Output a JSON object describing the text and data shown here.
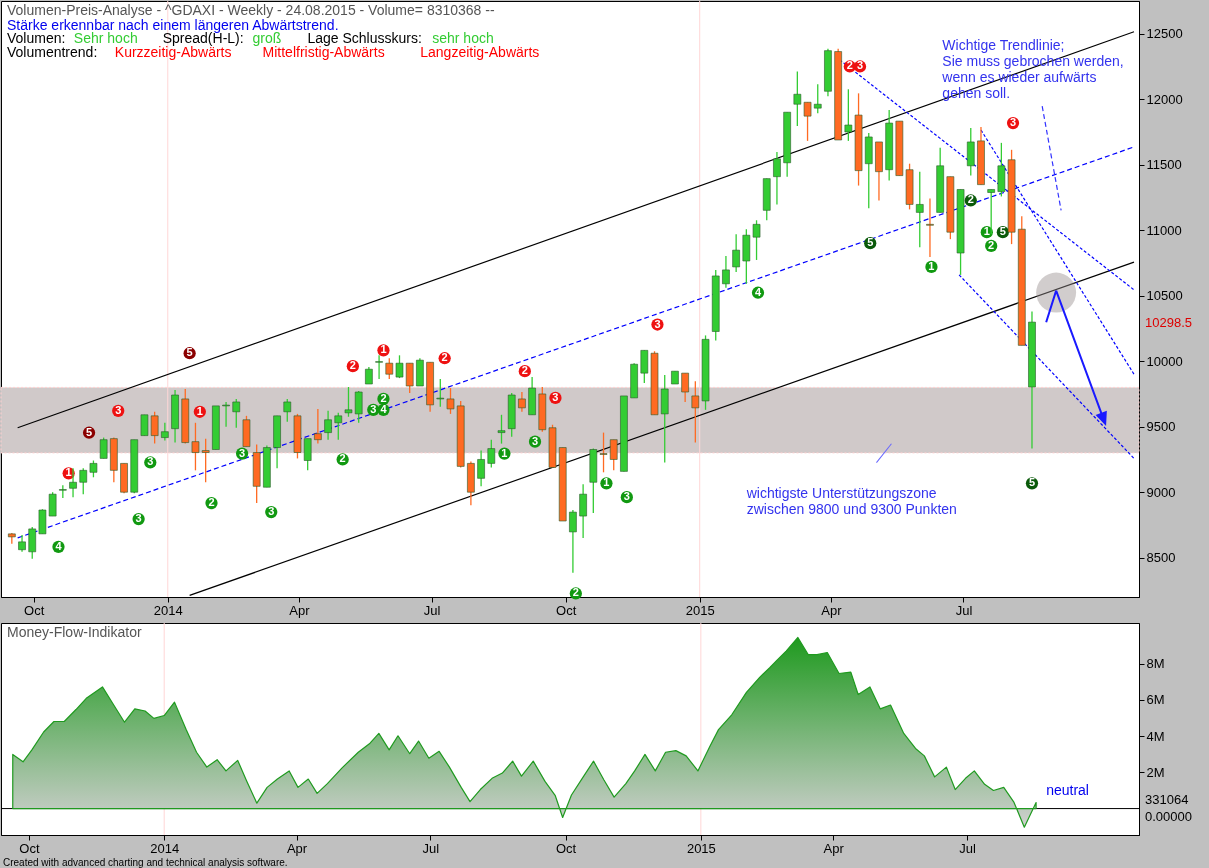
{
  "chart_data": [
    {
      "type": "candlestick",
      "title": "Volumen-Preis-Analyse - ^GDAXI - Weekly  - 24.08.2015 - Volume= 8310368 --",
      "subtitle": "Stärke erkennbar nach einem längeren Abwärtstrend.",
      "x": [
        "2013-09-16",
        "2013-09-23",
        "2013-09-30",
        "2013-10-07",
        "2013-10-14",
        "2013-10-21",
        "2013-10-28",
        "2013-11-04",
        "2013-11-11",
        "2013-11-18",
        "2013-11-25",
        "2013-12-02",
        "2013-12-09",
        "2013-12-16",
        "2013-12-23",
        "2013-12-30",
        "2014-01-06",
        "2014-01-13",
        "2014-01-20",
        "2014-01-27",
        "2014-02-03",
        "2014-02-10",
        "2014-02-17",
        "2014-02-24",
        "2014-03-03",
        "2014-03-10",
        "2014-03-17",
        "2014-03-24",
        "2014-03-31",
        "2014-04-07",
        "2014-04-14",
        "2014-04-21",
        "2014-04-28",
        "2014-05-05",
        "2014-05-12",
        "2014-05-19",
        "2014-05-26",
        "2014-06-02",
        "2014-06-09",
        "2014-06-16",
        "2014-06-23",
        "2014-06-30",
        "2014-07-07",
        "2014-07-14",
        "2014-07-21",
        "2014-07-28",
        "2014-08-04",
        "2014-08-11",
        "2014-08-18",
        "2014-08-25",
        "2014-09-01",
        "2014-09-08",
        "2014-09-15",
        "2014-09-22",
        "2014-09-29",
        "2014-10-06",
        "2014-10-13",
        "2014-10-20",
        "2014-10-27",
        "2014-11-03",
        "2014-11-10",
        "2014-11-17",
        "2014-11-24",
        "2014-12-01",
        "2014-12-08",
        "2014-12-15",
        "2014-12-22",
        "2014-12-29",
        "2015-01-05",
        "2015-01-12",
        "2015-01-19",
        "2015-01-26",
        "2015-02-02",
        "2015-02-09",
        "2015-02-16",
        "2015-02-23",
        "2015-03-02",
        "2015-03-09",
        "2015-03-16",
        "2015-03-23",
        "2015-03-30",
        "2015-04-06",
        "2015-04-13",
        "2015-04-20",
        "2015-04-27",
        "2015-05-04",
        "2015-05-11",
        "2015-05-18",
        "2015-05-25",
        "2015-06-01",
        "2015-06-08",
        "2015-06-15",
        "2015-06-22",
        "2015-06-29",
        "2015-07-06",
        "2015-07-13",
        "2015-07-20",
        "2015-07-27",
        "2015-08-03",
        "2015-08-10",
        "2015-08-17"
      ],
      "ohlc": [
        [
          8682,
          8689,
          8606,
          8659
        ],
        [
          8561,
          8674,
          8545,
          8621
        ],
        [
          8545,
          8735,
          8492,
          8720
        ],
        [
          8682,
          8870,
          8682,
          8864
        ],
        [
          8818,
          9000,
          8818,
          8985
        ],
        [
          9015,
          9053,
          8955,
          9020
        ],
        [
          9030,
          9182,
          8962,
          9076
        ],
        [
          9076,
          9182,
          8985,
          9167
        ],
        [
          9152,
          9242,
          9114,
          9220
        ],
        [
          9258,
          9417,
          9258,
          9401
        ],
        [
          9409,
          9417,
          9076,
          9167
        ],
        [
          9220,
          9220,
          8992,
          9000
        ],
        [
          9000,
          9401,
          8992,
          9401
        ],
        [
          9432,
          9591,
          9432,
          9591
        ],
        [
          9583,
          9614,
          9371,
          9432
        ],
        [
          9417,
          9530,
          9394,
          9462
        ],
        [
          9485,
          9780,
          9379,
          9742
        ],
        [
          9712,
          9788,
          9371,
          9379
        ],
        [
          9386,
          9530,
          9167,
          9303
        ],
        [
          9318,
          9409,
          9076,
          9303
        ],
        [
          9326,
          9659,
          9326,
          9659
        ],
        [
          9659,
          9689,
          9500,
          9665
        ],
        [
          9614,
          9712,
          9492,
          9689
        ],
        [
          9553,
          9583,
          9348,
          9348
        ],
        [
          9303,
          9364,
          8917,
          9045
        ],
        [
          9038,
          9356,
          9038,
          9341
        ],
        [
          9341,
          9583,
          9182,
          9583
        ],
        [
          9614,
          9712,
          9538,
          9689
        ],
        [
          9583,
          9598,
          9258,
          9303
        ],
        [
          9242,
          9409,
          9167,
          9409
        ],
        [
          9447,
          9636,
          9371,
          9401
        ],
        [
          9455,
          9621,
          9401,
          9553
        ],
        [
          9530,
          9606,
          9401,
          9583
        ],
        [
          9606,
          9803,
          9576,
          9629
        ],
        [
          9598,
          9773,
          9530,
          9765
        ],
        [
          9826,
          9955,
          9826,
          9939
        ],
        [
          9992,
          10045,
          9864,
          9997
        ],
        [
          9985,
          10023,
          9864,
          9901
        ],
        [
          9879,
          10045,
          9871,
          9985
        ],
        [
          9985,
          9985,
          9758,
          9811
        ],
        [
          9811,
          10023,
          9811,
          10008
        ],
        [
          9992,
          9992,
          9614,
          9667
        ],
        [
          9712,
          9864,
          9652,
          9718
        ],
        [
          9712,
          9795,
          9598,
          9636
        ],
        [
          9659,
          9697,
          9189,
          9197
        ],
        [
          9220,
          9235,
          8901,
          9000
        ],
        [
          9106,
          9318,
          9045,
          9250
        ],
        [
          9220,
          9401,
          9189,
          9333
        ],
        [
          9455,
          9591,
          9371,
          9470
        ],
        [
          9485,
          9758,
          9424,
          9742
        ],
        [
          9712,
          9765,
          9614,
          9644
        ],
        [
          9591,
          9879,
          9591,
          9795
        ],
        [
          9750,
          9803,
          9462,
          9477
        ],
        [
          9492,
          9515,
          9189,
          9189
        ],
        [
          9341,
          9341,
          8780,
          8780
        ],
        [
          8697,
          8864,
          8386,
          8848
        ],
        [
          8818,
          9061,
          8651,
          8985
        ],
        [
          9076,
          9333,
          8841,
          9326
        ],
        [
          9295,
          9455,
          9152,
          9288
        ],
        [
          9401,
          9401,
          9167,
          9250
        ],
        [
          9159,
          9735,
          9159,
          9735
        ],
        [
          9720,
          9985,
          9720,
          9977
        ],
        [
          9909,
          10083,
          9833,
          10083
        ],
        [
          10061,
          10076,
          9591,
          9591
        ],
        [
          9598,
          9894,
          9227,
          9788
        ],
        [
          9826,
          9924,
          9826,
          9924
        ],
        [
          9909,
          9909,
          9689,
          9765
        ],
        [
          9735,
          9848,
          9379,
          9644
        ],
        [
          9697,
          10197,
          9629,
          10167
        ],
        [
          10227,
          10697,
          10159,
          10651
        ],
        [
          10591,
          10803,
          10561,
          10697
        ],
        [
          10720,
          10970,
          10682,
          10848
        ],
        [
          10765,
          11008,
          10591,
          10962
        ],
        [
          10947,
          11076,
          10773,
          11045
        ],
        [
          11152,
          11394,
          11076,
          11394
        ],
        [
          11409,
          11598,
          11197,
          11545
        ],
        [
          11515,
          11901,
          11409,
          11901
        ],
        [
          11962,
          12212,
          11795,
          12038
        ],
        [
          11977,
          11977,
          11682,
          11871
        ],
        [
          11932,
          12114,
          11894,
          11962
        ],
        [
          12061,
          12386,
          12023,
          12371
        ],
        [
          12364,
          12386,
          11689,
          11689
        ],
        [
          11750,
          12076,
          11682,
          11803
        ],
        [
          11879,
          12045,
          11341,
          11455
        ],
        [
          11508,
          11742,
          11167,
          11712
        ],
        [
          11674,
          11674,
          11227,
          11447
        ],
        [
          11462,
          11917,
          11379,
          11818
        ],
        [
          11833,
          11833,
          11417,
          11417
        ],
        [
          11462,
          11508,
          11159,
          11197
        ],
        [
          11136,
          11447,
          10871,
          11197
        ],
        [
          11045,
          11242,
          10795,
          11038
        ],
        [
          11136,
          11629,
          11136,
          11492
        ],
        [
          11409,
          11409,
          10932,
          10985
        ],
        [
          10826,
          11311,
          10659,
          11311
        ],
        [
          11492,
          11780,
          11417,
          11674
        ],
        [
          11682,
          11788,
          11348,
          11348
        ],
        [
          11288,
          11311,
          10970,
          11311
        ],
        [
          11295,
          11667,
          11258,
          11492
        ],
        [
          11538,
          11614,
          10894,
          10985
        ],
        [
          11008,
          11106,
          10121,
          10121
        ],
        [
          9803,
          10379,
          9333,
          10298.5
        ]
      ],
      "colors": [
        "#ff6a22",
        "#33cc33",
        "#33cc33",
        "#33cc33",
        "#33cc33",
        "#33cc33",
        "#33cc33",
        "#33cc33",
        "#33cc33",
        "#33cc33",
        "#ff6a22",
        "#ff6a22",
        "#33cc33",
        "#33cc33",
        "#ff6a22",
        "#33cc33",
        "#33cc33",
        "#ff6a22",
        "#ff6a22",
        "#ff6a22",
        "#33cc33",
        "#33cc33",
        "#33cc33",
        "#ff6a22",
        "#ff6a22",
        "#33cc33",
        "#33cc33",
        "#33cc33",
        "#ff6a22",
        "#33cc33",
        "#ff6a22",
        "#33cc33",
        "#33cc33",
        "#33cc33",
        "#33cc33",
        "#33cc33",
        "#33cc33",
        "#ff6a22",
        "#33cc33",
        "#ff6a22",
        "#33cc33",
        "#ff6a22",
        "#33cc33",
        "#ff6a22",
        "#ff6a22",
        "#ff6a22",
        "#33cc33",
        "#33cc33",
        "#33cc33",
        "#33cc33",
        "#ff6a22",
        "#33cc33",
        "#ff6a22",
        "#ff6a22",
        "#ff6a22",
        "#33cc33",
        "#33cc33",
        "#33cc33",
        "#ff6a22",
        "#ff6a22",
        "#33cc33",
        "#33cc33",
        "#33cc33",
        "#ff6a22",
        "#33cc33",
        "#33cc33",
        "#ff6a22",
        "#ff6a22",
        "#33cc33",
        "#33cc33",
        "#33cc33",
        "#33cc33",
        "#33cc33",
        "#33cc33",
        "#33cc33",
        "#33cc33",
        "#33cc33",
        "#33cc33",
        "#ff6a22",
        "#33cc33",
        "#33cc33",
        "#ff6a22",
        "#33cc33",
        "#ff6a22",
        "#33cc33",
        "#ff6a22",
        "#33cc33",
        "#ff6a22",
        "#ff6a22",
        "#33cc33",
        "#ff6a22",
        "#33cc33",
        "#ff6a22",
        "#33cc33",
        "#33cc33",
        "#ff6a22",
        "#33cc33",
        "#33cc33",
        "#ff6a22",
        "#ff6a22",
        "#33cc33"
      ],
      "series": [
        {
          "type": "line",
          "color": "#000000",
          "line_style": "solid",
          "x": [
            "2013-09-20",
            "2015-10-26"
          ],
          "values": [
            9492,
            12515
          ]
        },
        {
          "type": "line",
          "color": "#000000",
          "line_style": "solid",
          "x": [
            "2014-01-16",
            "2015-10-26"
          ],
          "values": [
            8212,
            10757
          ]
        },
        {
          "type": "line",
          "color": "#0000ff",
          "line_style": "dashed",
          "x": [
            "2013-09-20",
            "2015-10-26"
          ],
          "values": [
            8651,
            11636
          ]
        },
        {
          "type": "line",
          "color": "#0000ff",
          "line_style": "dotted",
          "x": [
            "2015-04-07",
            "2015-10-26"
          ],
          "values": [
            12301,
            10545
          ]
        },
        {
          "type": "line",
          "color": "#0000ff",
          "line_style": "dotted",
          "x": [
            "2015-07-13",
            "2015-10-26"
          ],
          "values": [
            11765,
            9901
          ]
        },
        {
          "type": "line",
          "color": "#0000ff",
          "line_style": "dotted",
          "x": [
            "2015-06-28",
            "2015-10-26"
          ],
          "values": [
            10659,
            9258
          ]
        },
        {
          "type": "line",
          "color": "#3333ff",
          "line_style": "dashed",
          "x": [
            "2015-08-24",
            "2015-09-06"
          ],
          "values": [
            11947,
            11151
          ]
        },
        {
          "type": "scatter",
          "color": "#ee1111",
          "marker": "circle",
          "x": [
            "2013-10-25",
            "2013-11-28",
            "2014-01-23",
            "2014-05-08",
            "2014-05-29",
            "2014-07-10",
            "2014-09-03",
            "2014-09-24",
            "2014-12-03",
            "2015-04-14",
            "2015-04-21",
            "2015-08-04"
          ],
          "values": [
            9144,
            9621,
            9614,
            9962,
            10083,
            10023,
            9924,
            9720,
            10280,
            12250,
            12250,
            11818
          ]
        },
        {
          "type": "scatter",
          "color": "#8b0000",
          "marker": "circle",
          "x": [
            "2013-11-08",
            "2014-01-16"
          ],
          "values": [
            9454,
            10061
          ]
        },
        {
          "type": "scatter",
          "color": "#119911",
          "marker": "circle",
          "x": [
            "2013-10-18",
            "2013-12-12",
            "2013-12-20",
            "2014-01-31",
            "2014-02-21",
            "2014-03-13",
            "2014-05-01",
            "2014-05-22",
            "2014-05-29",
            "2014-05-29",
            "2014-08-20",
            "2014-09-10",
            "2014-10-08",
            "2014-10-29",
            "2014-11-12",
            "2015-02-10",
            "2015-06-09",
            "2015-07-17",
            "2015-07-20"
          ],
          "values": [
            8583,
            8795,
            9227,
            8917,
            9295,
            8848,
            9250,
            9629,
            9629,
            9712,
            9295,
            9386,
            8227,
            9068,
            8962,
            10523,
            10720,
            10985,
            10880
          ]
        },
        {
          "type": "scatter",
          "color": "#0a5a0a",
          "marker": "circle",
          "x": [
            "2015-04-28",
            "2015-07-06",
            "2015-07-28",
            "2015-08-17"
          ],
          "values": [
            10901,
            11227,
            10985,
            9068
          ]
        }
      ],
      "bands": [
        {
          "axis": "y",
          "from": 9300,
          "to": 9800,
          "color": "#d0c9c9"
        }
      ],
      "ref_lines": [
        {
          "axis": "x",
          "value": "2014-01-01",
          "color": "#ffd6d6"
        },
        {
          "axis": "x",
          "value": "2015-01-01",
          "color": "#ffd6d6"
        }
      ],
      "annotations": [
        "Volumen:",
        "Sehr hoch",
        "Spread(H-L):",
        "groß",
        "Lage Schlusskurs:",
        "sehr hoch",
        "Volumentrend:",
        "Kurzzeitig-Abwärts",
        "Mittelfristig-Abwärts",
        "Langzeitig-Abwärts",
        "Wichtige Trendlinie;\nSie muss gebrochen werden,\nwenn es wieder aufwärts\ngehen soll.",
        "wichtigste Unterstützungszone\nzwischen 9800 und 9300 Punkten",
        "10298.5",
        "1",
        "3",
        "1",
        "2",
        "1",
        "2",
        "2",
        "3",
        "3",
        "2",
        "3",
        "3",
        "5",
        "5",
        "4",
        "3",
        "3",
        "2",
        "3",
        "3",
        "2",
        "3",
        "4",
        "2",
        "1",
        "3",
        "2",
        "1",
        "3",
        "4",
        "1",
        "1",
        "2",
        "5",
        "2",
        "5",
        "5"
      ],
      "xlim": [
        "2013-09-12",
        "2015-10-26"
      ],
      "xticks": [
        {
          "value": "2013-10-01",
          "label": "Oct"
        },
        {
          "value": "2014-01-01",
          "label": "2014"
        },
        {
          "value": "2014-04-01",
          "label": "Apr"
        },
        {
          "value": "2014-07-01",
          "label": "Jul"
        },
        {
          "value": "2014-10-01",
          "label": "Oct"
        },
        {
          "value": "2015-01-01",
          "label": "2015"
        },
        {
          "value": "2015-04-01",
          "label": "Apr"
        },
        {
          "value": "2015-07-01",
          "label": "Jul"
        }
      ],
      "ylim": [
        8200,
        12750
      ],
      "yticks": [
        8500,
        9000,
        9500,
        10000,
        10500,
        11000,
        11500,
        12000,
        12500
      ]
    },
    {
      "type": "area",
      "title": "Money-Flow-Indikator",
      "series": [
        {
          "type": "area",
          "color": "#1f9a1f",
          "x": [
            "2013-09-20",
            "2013-09-27",
            "2013-10-03",
            "2013-10-11",
            "2013-10-18",
            "2013-10-25",
            "2013-11-02",
            "2013-11-09",
            "2013-11-20",
            "2013-11-28",
            "2013-12-05",
            "2013-12-12",
            "2013-12-19",
            "2013-12-25",
            "2014-01-01",
            "2014-01-08",
            "2014-01-16",
            "2014-01-23",
            "2014-01-30",
            "2014-02-06",
            "2014-02-12",
            "2014-02-20",
            "2014-02-26",
            "2014-03-05",
            "2014-03-12",
            "2014-03-19",
            "2014-03-27",
            "2014-04-02",
            "2014-04-09",
            "2014-04-15",
            "2014-04-22",
            "2014-05-02",
            "2014-05-13",
            "2014-05-21",
            "2014-05-27",
            "2014-06-03",
            "2014-06-09",
            "2014-06-17",
            "2014-06-23",
            "2014-06-30",
            "2014-07-07",
            "2014-07-14",
            "2014-07-22",
            "2014-07-28",
            "2014-08-04",
            "2014-08-12",
            "2014-08-19",
            "2014-08-26",
            "2014-09-01",
            "2014-09-09",
            "2014-09-17",
            "2014-09-24",
            "2014-09-29",
            "2014-10-05",
            "2014-10-13",
            "2014-10-20",
            "2014-10-27",
            "2014-11-03",
            "2014-11-11",
            "2014-11-17",
            "2014-11-24",
            "2014-12-01",
            "2014-12-08",
            "2014-12-15",
            "2014-12-22",
            "2014-12-30",
            "2015-01-07",
            "2015-01-13",
            "2015-01-22",
            "2015-02-01",
            "2015-02-10",
            "2015-02-17",
            "2015-02-22",
            "2015-02-28",
            "2015-03-08",
            "2015-03-15",
            "2015-03-21",
            "2015-03-28",
            "2015-04-05",
            "2015-04-13",
            "2015-04-18",
            "2015-04-26",
            "2015-05-03",
            "2015-05-10",
            "2015-05-19",
            "2015-05-27",
            "2015-06-02",
            "2015-06-09",
            "2015-06-17",
            "2015-06-23",
            "2015-06-30",
            "2015-07-06",
            "2015-07-13",
            "2015-07-19",
            "2015-07-26",
            "2015-08-02",
            "2015-08-09",
            "2015-08-17"
          ],
          "values": [
            2990000,
            2580000,
            3240000,
            4230000,
            4810000,
            4810000,
            5470000,
            6090000,
            6720000,
            5680000,
            4770000,
            5510000,
            5390000,
            4980000,
            5140000,
            5880000,
            4350000,
            3110000,
            2290000,
            2700000,
            2080000,
            2660000,
            1540000,
            300000,
            1170000,
            1630000,
            2080000,
            1170000,
            1630000,
            840000,
            1380000,
            2250000,
            3110000,
            3610000,
            4150000,
            3240000,
            4020000,
            3030000,
            3730000,
            2780000,
            3160000,
            2290000,
            1170000,
            380000,
            1050000,
            1670000,
            1960000,
            2620000,
            1790000,
            2620000,
            1500000,
            710000,
            -490000,
            750000,
            1750000,
            2620000,
            1590000,
            630000,
            1380000,
            2080000,
            2990000,
            2080000,
            3110000,
            3200000,
            2910000,
            2080000,
            3410000,
            4360000,
            5180000,
            6420000,
            7250000,
            7790000,
            8210000,
            8700000,
            9450000,
            8500000,
            8500000,
            8620000,
            7460000,
            7540000,
            6300000,
            6720000,
            5510000,
            5720000,
            4150000,
            3320000,
            2910000,
            1750000,
            2290000,
            1050000,
            1670000,
            2080000,
            1340000,
            1000000,
            1170000,
            340000,
            -1030000,
            331064
          ]
        }
      ],
      "ref_lines": [
        {
          "axis": "x",
          "value": "2014-01-01",
          "color": "#ffd6d6"
        },
        {
          "axis": "x",
          "value": "2015-01-01",
          "color": "#ffd6d6"
        },
        {
          "axis": "y",
          "value": 0,
          "color": "#000000"
        }
      ],
      "annotations": [
        "Created with advanced charting and technical analysis software.",
        "neutral",
        "331064",
        "0.00000"
      ],
      "xlim": [
        "2013-09-12",
        "2015-10-26"
      ],
      "xticks": [
        {
          "value": "2013-10-01",
          "label": "Oct"
        },
        {
          "value": "2014-01-01",
          "label": "2014"
        },
        {
          "value": "2014-04-01",
          "label": "Apr"
        },
        {
          "value": "2014-07-01",
          "label": "Jul"
        },
        {
          "value": "2014-10-01",
          "label": "Oct"
        },
        {
          "value": "2015-01-01",
          "label": "2015"
        },
        {
          "value": "2015-04-01",
          "label": "Apr"
        },
        {
          "value": "2015-07-01",
          "label": "Jul"
        }
      ],
      "ylim": [
        -1460000,
        10250000
      ],
      "yticks": [
        {
          "value": 2000000,
          "label": "2M"
        },
        {
          "value": 4000000,
          "label": "4M"
        },
        {
          "value": 6000000,
          "label": "6M"
        },
        {
          "value": 8000000,
          "label": "8M"
        }
      ]
    }
  ]
}
